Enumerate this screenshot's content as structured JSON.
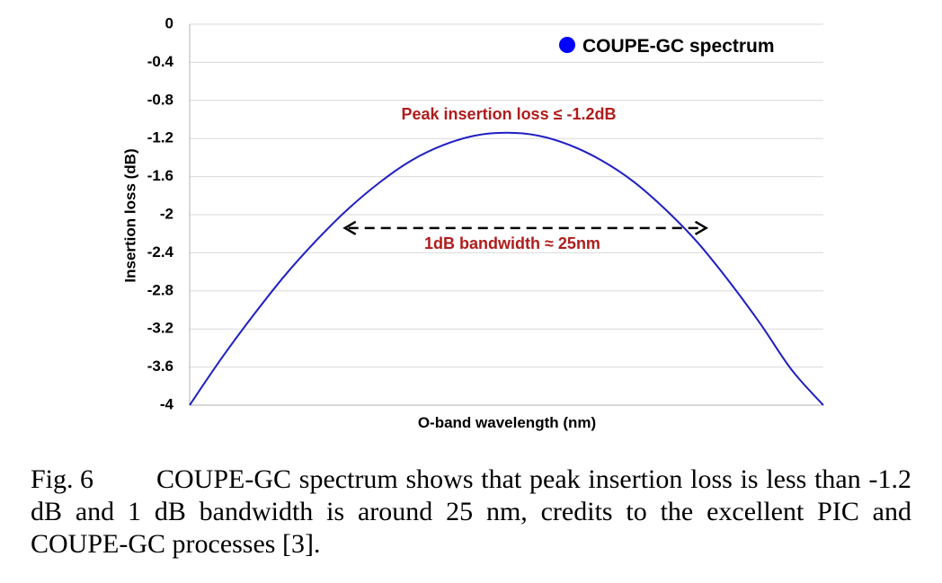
{
  "chart_data": {
    "type": "line",
    "title": "",
    "xlabel": "O-band wavelength (nm)",
    "ylabel": "Insertion loss (dB)",
    "ylim": [
      -4,
      0
    ],
    "yticks": [
      0,
      -0.4,
      -0.8,
      -1.2,
      -1.6,
      -2,
      -2.4,
      -2.8,
      -3.2,
      -3.6,
      -4
    ],
    "ytick_labels": [
      "0",
      "-0.4",
      "-0.8",
      "-1.2",
      "-1.6",
      "-2",
      "-2.4",
      "-2.8",
      "-3.2",
      "-3.6",
      "-4"
    ],
    "xticks_shown": false,
    "grid": "horizontal",
    "legend_position": "top-right",
    "series": [
      {
        "name": "COUPE-GC spectrum",
        "color": "#1f1fc4",
        "x": [
          0,
          0.05,
          0.1,
          0.15,
          0.2,
          0.25,
          0.3,
          0.35,
          0.4,
          0.45,
          0.5,
          0.55,
          0.6,
          0.65,
          0.7,
          0.75,
          0.8,
          0.85,
          0.9,
          0.95,
          1.0
        ],
        "y": [
          -4.0,
          -3.51,
          -3.06,
          -2.64,
          -2.27,
          -1.94,
          -1.66,
          -1.43,
          -1.27,
          -1.17,
          -1.14,
          -1.17,
          -1.27,
          -1.43,
          -1.65,
          -1.94,
          -2.28,
          -2.69,
          -3.14,
          -3.63,
          -4.0
        ]
      }
    ],
    "annotations": {
      "peak_text": "Peak insertion loss ≤ -1.2dB",
      "bandwidth_text": "1dB bandwidth ≈ 25nm",
      "bandwidth_level": -2.14,
      "bandwidth_from": 0.245,
      "bandwidth_to": 0.815,
      "text_color": "#b01c1c"
    }
  },
  "caption": {
    "label": "Fig. 6",
    "text": "COUPE-GC spectrum shows that peak insertion loss is less than -1.2 dB and 1 dB bandwidth is around 25 nm, credits to the excellent PIC and COUPE-GC processes [3]."
  },
  "colors": {
    "grid": "#d9d9d9",
    "axis": "#bfbfbf",
    "series": "#1f1fc4",
    "legend_marker": "#0000ff",
    "annotation": "#b01c1c",
    "arrow": "#000000"
  }
}
